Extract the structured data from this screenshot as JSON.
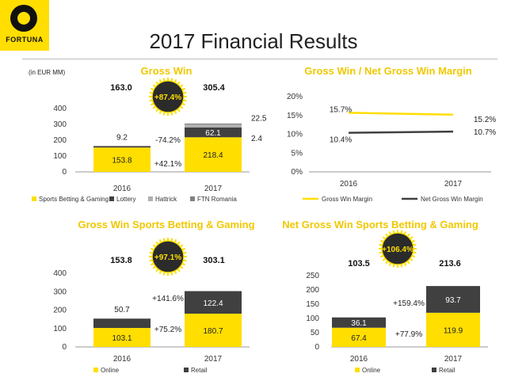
{
  "header": {
    "logo_text": "FORTUNA",
    "title": "2017 Financial Results",
    "unit_note": "(in EUR MM)"
  },
  "colors": {
    "yellow": "#ffde00",
    "dark": "#404040",
    "grey": "#b0b0b0",
    "title_yellow": "#f0c800"
  },
  "chart_data": [
    {
      "id": "gross_win",
      "type": "bar",
      "stacked": true,
      "title": "Gross Win",
      "categories": [
        "2016",
        "2017"
      ],
      "series": [
        {
          "name": "Sports Betting & Gaming",
          "values": [
            153.8,
            218.4
          ],
          "color": "#ffde00",
          "labels": [
            "153.8",
            "218.4"
          ]
        },
        {
          "name": "Lottery",
          "values": [
            9.2,
            62.1
          ],
          "color": "#404040",
          "labels": [
            "9.2",
            "62.1"
          ]
        },
        {
          "name": "Hattrick",
          "values": [
            0,
            22.5
          ],
          "color": "#b0b0b0",
          "labels": [
            "",
            "22.5"
          ]
        },
        {
          "name": "FTN Romania",
          "values": [
            0,
            2.4
          ],
          "color": "#808080",
          "labels": [
            "",
            "2.4"
          ]
        }
      ],
      "totals": [
        "163.0",
        "305.4"
      ],
      "changes": [
        "-74.2%",
        "+42.1%"
      ],
      "badge": "+87.4%",
      "yticks": [
        0,
        100,
        200,
        300,
        400
      ],
      "ylim": [
        0,
        400
      ]
    },
    {
      "id": "margin",
      "type": "line",
      "title": "Gross Win / Net Gross Win Margin",
      "categories": [
        "2016",
        "2017"
      ],
      "series": [
        {
          "name": "Gross Win Margin",
          "values": [
            15.7,
            15.2
          ],
          "color": "#ffde00",
          "labels": [
            "15.7%",
            "15.2%"
          ]
        },
        {
          "name": "Net Gross Win Margin",
          "values": [
            10.4,
            10.7
          ],
          "color": "#404040",
          "labels": [
            "10.4%",
            "10.7%"
          ]
        }
      ],
      "yticks": [
        "0%",
        "5%",
        "10%",
        "15%",
        "20%"
      ],
      "ylim": [
        0,
        20
      ]
    },
    {
      "id": "gw_sbg",
      "type": "bar",
      "stacked": true,
      "title": "Gross Win Sports Betting & Gaming",
      "categories": [
        "2016",
        "2017"
      ],
      "series": [
        {
          "name": "Online",
          "values": [
            103.1,
            180.7
          ],
          "color": "#ffde00",
          "labels": [
            "103.1",
            "180.7"
          ]
        },
        {
          "name": "Retail",
          "values": [
            50.7,
            122.4
          ],
          "color": "#404040",
          "labels": [
            "50.7",
            "122.4"
          ]
        }
      ],
      "totals": [
        "153.8",
        "303.1"
      ],
      "changes": [
        "+141.6%",
        "+75.2%"
      ],
      "badge": "+97.1%",
      "yticks": [
        0,
        100,
        200,
        300,
        400
      ],
      "ylim": [
        0,
        400
      ]
    },
    {
      "id": "ngw_sbg",
      "type": "bar",
      "stacked": true,
      "title": "Net Gross Win Sports Betting & Gaming",
      "categories": [
        "2016",
        "2017"
      ],
      "series": [
        {
          "name": "Online",
          "values": [
            67.4,
            119.9
          ],
          "color": "#ffde00",
          "labels": [
            "67.4",
            "119.9"
          ]
        },
        {
          "name": "Retail",
          "values": [
            36.1,
            93.7
          ],
          "color": "#404040",
          "labels": [
            "36.1",
            "93.7"
          ]
        }
      ],
      "totals": [
        "103.5",
        "213.6"
      ],
      "changes": [
        "+159.4%",
        "+77.9%"
      ],
      "badge": "+106.4%",
      "yticks": [
        0,
        50,
        100,
        150,
        200,
        250
      ],
      "ylim": [
        0,
        250
      ]
    }
  ]
}
